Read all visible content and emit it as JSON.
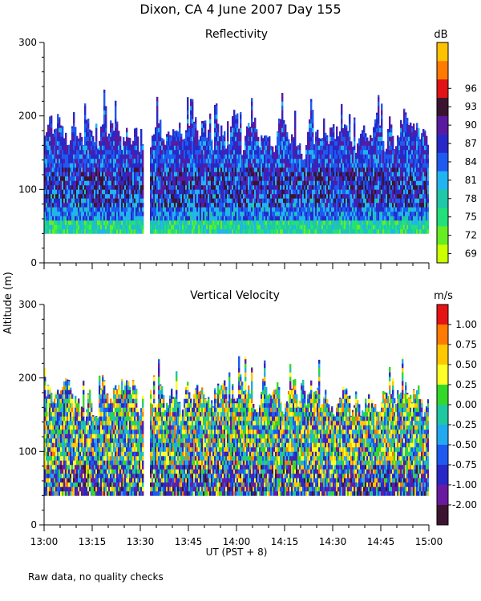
{
  "title": "Dixon, CA  4 June 2007  Day 155",
  "ylabel": "Altitude (m)",
  "xlabel": "UT  (PST + 8)",
  "footer": "Raw data, no quality checks",
  "chart_data": [
    {
      "type": "heatmap",
      "title": "Reflectivity",
      "unit": "dB",
      "x_range": [
        "13:00",
        "15:00"
      ],
      "x_ticks": [
        "13:00",
        "13:15",
        "13:30",
        "13:45",
        "14:00",
        "14:15",
        "14:30",
        "14:45",
        "15:00"
      ],
      "ylim": [
        0,
        300
      ],
      "y_ticks": [
        "0",
        "100",
        "200",
        "300"
      ],
      "colorbar": {
        "labels": [
          "69",
          "72",
          "75",
          "78",
          "81",
          "84",
          "87",
          "90",
          "93",
          "96"
        ],
        "colors": [
          "#ccff00",
          "#66ee22",
          "#22e07a",
          "#1ec8a8",
          "#22b4f0",
          "#1e5af0",
          "#2828c8",
          "#5a1aa0",
          "#3c1430",
          "#e01414",
          "#ff7a00",
          "#ffc200"
        ]
      },
      "data_gap": [
        "13:31",
        "13:33"
      ]
    },
    {
      "type": "heatmap",
      "title": "Vertical Velocity",
      "unit": "m/s",
      "x_range": [
        "13:00",
        "15:00"
      ],
      "x_ticks": [
        "13:00",
        "13:15",
        "13:30",
        "13:45",
        "14:00",
        "14:15",
        "14:30",
        "14:45",
        "15:00"
      ],
      "ylim": [
        0,
        300
      ],
      "y_ticks": [
        "0",
        "100",
        "200",
        "300"
      ],
      "colorbar": {
        "labels": [
          "1.00",
          "0.75",
          "0.50",
          "0.25",
          "0.00",
          "-0.25",
          "-0.50",
          "-0.75",
          "-1.00",
          "-2.00"
        ],
        "colors": [
          "#e41414",
          "#ff7a00",
          "#ffc800",
          "#ffff28",
          "#34d828",
          "#1ec8a0",
          "#22aaf0",
          "#1e5af0",
          "#2828c8",
          "#6a1aa0",
          "#3c1430"
        ]
      },
      "data_gap": [
        "13:31",
        "13:33"
      ]
    }
  ]
}
